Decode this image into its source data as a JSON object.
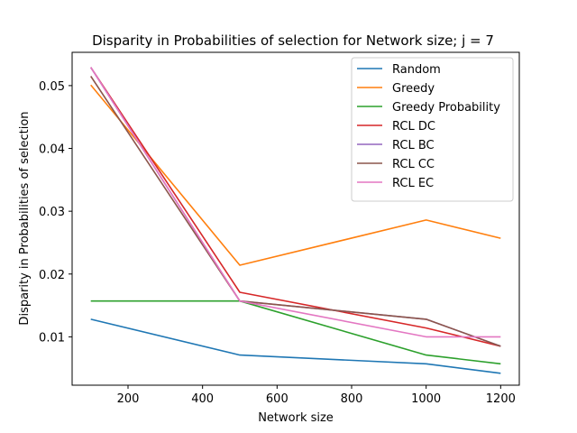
{
  "chart_data": {
    "type": "line",
    "title": "Disparity in Probabilities of selection for Network size; j = 7",
    "xlabel": "Network size",
    "ylabel": "Disparity in Probabilities of selection",
    "x": [
      100,
      500,
      1000,
      1200
    ],
    "xlim": [
      50,
      1250
    ],
    "ylim": [
      0.0023,
      0.0553
    ],
    "xticks": [
      200,
      400,
      600,
      800,
      1000,
      1200
    ],
    "yticks": [
      0.01,
      0.02,
      0.03,
      0.04,
      0.05
    ],
    "ytick_labels": [
      "0.01",
      "0.02",
      "0.03",
      "0.04",
      "0.05"
    ],
    "grid": false,
    "legend_position": "top-right",
    "series": [
      {
        "name": "Random",
        "color": "#1f77b4",
        "values": [
          0.0128,
          0.0071,
          0.0057,
          0.0042
        ]
      },
      {
        "name": "Greedy",
        "color": "#ff7f0e",
        "values": [
          0.0501,
          0.0214,
          0.0286,
          0.0257
        ]
      },
      {
        "name": "Greedy Probability",
        "color": "#2ca02c",
        "values": [
          0.0157,
          0.0157,
          0.0071,
          0.0057
        ]
      },
      {
        "name": "RCL DC",
        "color": "#d62728",
        "values": [
          0.0529,
          0.0171,
          0.0114,
          0.0085
        ]
      },
      {
        "name": "RCL BC",
        "color": "#9467bd",
        "values": [
          0.0529,
          0.0157,
          0.0128,
          0.0085
        ]
      },
      {
        "name": "RCL CC",
        "color": "#8c564b",
        "values": [
          0.0515,
          0.0157,
          0.0128,
          0.0085
        ]
      },
      {
        "name": "RCL EC",
        "color": "#e377c2",
        "values": [
          0.0529,
          0.0157,
          0.01,
          0.01
        ]
      }
    ]
  }
}
